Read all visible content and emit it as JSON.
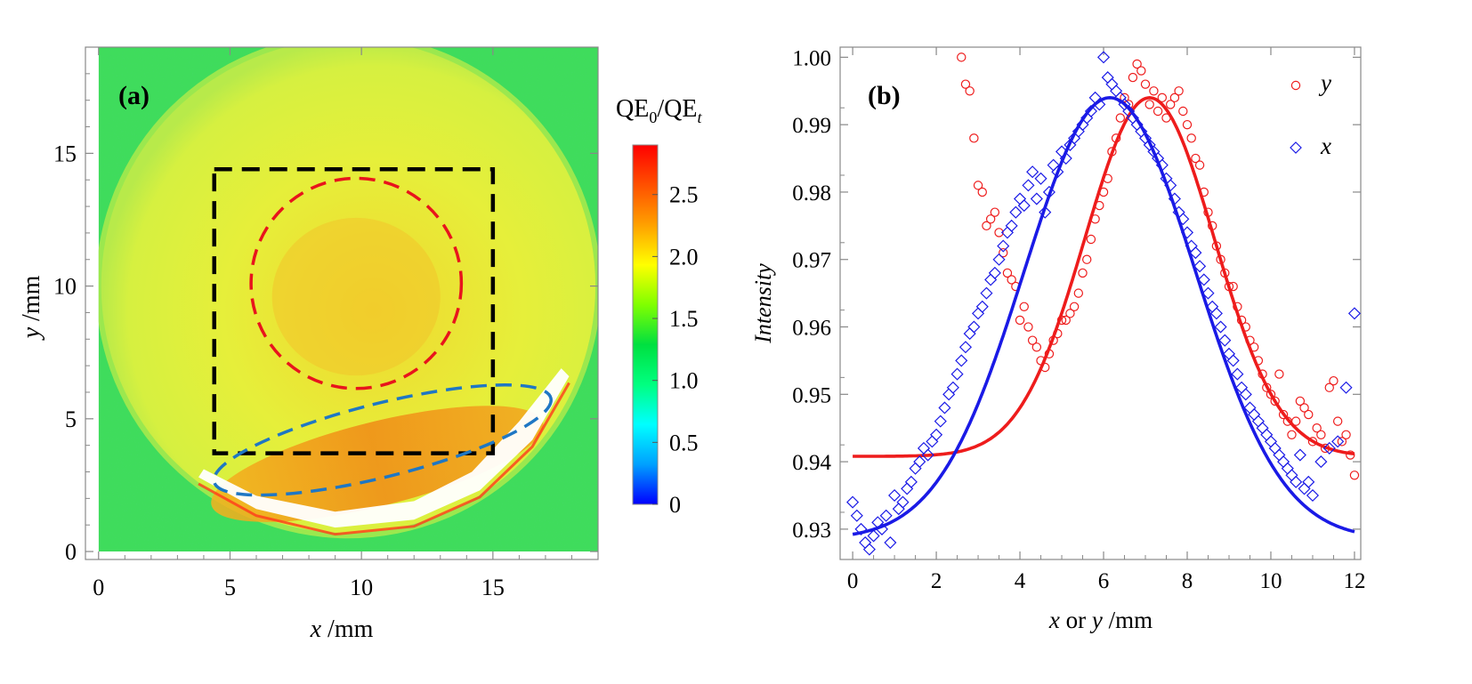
{
  "colors": {
    "frame": "#888888",
    "text": "#000000",
    "red": "#ee1c1c",
    "blue": "#1a1ae6",
    "dashed_black": "#000000",
    "dashed_red": "#e8141c",
    "dashed_blue": "#1f77c4",
    "map_background": "#3fdc5c",
    "disk_yellow": "#e8ef3a",
    "disk_orange": "#f2a51e",
    "white_streak": "#ffffff"
  },
  "chart_data": [
    {
      "type": "heatmap",
      "panel_label": "(a)",
      "xlabel": {
        "var": "x",
        "unit": " /mm"
      },
      "ylabel": {
        "var": "y",
        "unit": " /mm"
      },
      "xlim": [
        -0.5,
        19
      ],
      "ylim": [
        -0.3,
        19
      ],
      "xticks": [
        0,
        5,
        10,
        15
      ],
      "yticks": [
        0,
        5,
        10,
        15
      ],
      "colorbar": {
        "title_main": "QE",
        "title_sub1": "0",
        "title_sep": "/QE",
        "title_sub2": "t",
        "range": [
          0,
          2.9
        ],
        "ticks": [
          0,
          0.5,
          1.0,
          1.5,
          2.0,
          2.5
        ],
        "tick_labels": [
          "0",
          "0.5",
          "1.0",
          "1.5",
          "2.0",
          "2.5"
        ],
        "stops": [
          "#0000ff",
          "#00a0ff",
          "#00ffff",
          "#00ff80",
          "#00e040",
          "#80ff00",
          "#ffff00",
          "#ffa000",
          "#ff5000",
          "#ff0000"
        ]
      },
      "disk": {
        "center": [
          9.5,
          10
        ],
        "radius": 9.4
      },
      "annotations": {
        "black_dashed_rectangle": {
          "x": [
            4.4,
            15.0
          ],
          "y": [
            3.7,
            14.4
          ]
        },
        "red_dashed_circle": {
          "center": [
            9.8,
            10.1
          ],
          "radius": 4.0
        },
        "blue_dashed_ellipse": {
          "center": [
            10.8,
            4.2
          ],
          "semi_axes": [
            6.6,
            1.4
          ],
          "angle_deg": 14
        }
      }
    },
    {
      "type": "scatter",
      "panel_label": "(b)",
      "xlabel": {
        "var1": "x",
        "mid": " or ",
        "var2": "y",
        "unit": " /mm"
      },
      "ylabel": "Intensity",
      "xlim": [
        -0.3,
        12.15
      ],
      "ylim": [
        0.9255,
        1.0015
      ],
      "xticks": [
        0,
        2,
        4,
        6,
        8,
        10,
        12
      ],
      "yticks": [
        0.93,
        0.94,
        0.95,
        0.96,
        0.97,
        0.98,
        0.99,
        1.0
      ],
      "ytick_labels": [
        "0.93",
        "0.94",
        "0.95",
        "0.96",
        "0.97",
        "0.98",
        "0.99",
        "1.00"
      ],
      "series": [
        {
          "name": "y",
          "marker": "circle",
          "color": "#ee1c1c",
          "fit": {
            "baseline": 0.9408,
            "amplitude": 0.0532,
            "center": 7.1,
            "sigma": 1.55
          },
          "points": [
            [
              2.6,
              1.0
            ],
            [
              2.7,
              0.996
            ],
            [
              2.8,
              0.995
            ],
            [
              2.9,
              0.988
            ],
            [
              3.0,
              0.981
            ],
            [
              3.1,
              0.98
            ],
            [
              3.2,
              0.975
            ],
            [
              3.3,
              0.976
            ],
            [
              3.4,
              0.977
            ],
            [
              3.5,
              0.974
            ],
            [
              3.6,
              0.971
            ],
            [
              3.7,
              0.968
            ],
            [
              3.8,
              0.967
            ],
            [
              3.9,
              0.966
            ],
            [
              4.0,
              0.961
            ],
            [
              4.1,
              0.963
            ],
            [
              4.2,
              0.96
            ],
            [
              4.3,
              0.958
            ],
            [
              4.4,
              0.957
            ],
            [
              4.5,
              0.955
            ],
            [
              4.6,
              0.954
            ],
            [
              4.7,
              0.956
            ],
            [
              4.8,
              0.958
            ],
            [
              4.9,
              0.959
            ],
            [
              5.0,
              0.961
            ],
            [
              5.1,
              0.961
            ],
            [
              5.2,
              0.962
            ],
            [
              5.3,
              0.963
            ],
            [
              5.4,
              0.965
            ],
            [
              5.5,
              0.968
            ],
            [
              5.6,
              0.97
            ],
            [
              5.7,
              0.973
            ],
            [
              5.8,
              0.976
            ],
            [
              5.9,
              0.978
            ],
            [
              6.0,
              0.98
            ],
            [
              6.1,
              0.982
            ],
            [
              6.2,
              0.986
            ],
            [
              6.3,
              0.988
            ],
            [
              6.4,
              0.991
            ],
            [
              6.5,
              0.994
            ],
            [
              6.6,
              0.993
            ],
            [
              6.7,
              0.997
            ],
            [
              6.8,
              0.999
            ],
            [
              6.9,
              0.998
            ],
            [
              7.0,
              0.996
            ],
            [
              7.1,
              0.993
            ],
            [
              7.2,
              0.995
            ],
            [
              7.3,
              0.992
            ],
            [
              7.4,
              0.994
            ],
            [
              7.5,
              0.991
            ],
            [
              7.6,
              0.993
            ],
            [
              7.7,
              0.994
            ],
            [
              7.8,
              0.995
            ],
            [
              7.9,
              0.992
            ],
            [
              8.0,
              0.99
            ],
            [
              8.1,
              0.988
            ],
            [
              8.2,
              0.985
            ],
            [
              8.3,
              0.984
            ],
            [
              8.4,
              0.98
            ],
            [
              8.5,
              0.977
            ],
            [
              8.6,
              0.975
            ],
            [
              8.7,
              0.972
            ],
            [
              8.8,
              0.97
            ],
            [
              8.9,
              0.968
            ],
            [
              9.0,
              0.966
            ],
            [
              9.1,
              0.966
            ],
            [
              9.2,
              0.963
            ],
            [
              9.3,
              0.961
            ],
            [
              9.4,
              0.96
            ],
            [
              9.5,
              0.958
            ],
            [
              9.6,
              0.957
            ],
            [
              9.7,
              0.955
            ],
            [
              9.8,
              0.953
            ],
            [
              9.9,
              0.951
            ],
            [
              10.0,
              0.95
            ],
            [
              10.1,
              0.949
            ],
            [
              10.2,
              0.953
            ],
            [
              10.3,
              0.947
            ],
            [
              10.4,
              0.946
            ],
            [
              10.5,
              0.944
            ],
            [
              10.6,
              0.946
            ],
            [
              10.7,
              0.949
            ],
            [
              10.8,
              0.948
            ],
            [
              10.9,
              0.947
            ],
            [
              11.0,
              0.943
            ],
            [
              11.1,
              0.945
            ],
            [
              11.2,
              0.944
            ],
            [
              11.3,
              0.942
            ],
            [
              11.4,
              0.951
            ],
            [
              11.5,
              0.952
            ],
            [
              11.6,
              0.946
            ],
            [
              11.7,
              0.943
            ],
            [
              11.8,
              0.944
            ],
            [
              11.9,
              0.941
            ],
            [
              12.0,
              0.938
            ]
          ]
        },
        {
          "name": "x",
          "marker": "diamond",
          "color": "#1a1ae6",
          "fit": {
            "baseline": 0.9285,
            "amplitude": 0.0655,
            "center": 6.15,
            "sigma": 2.05
          },
          "points": [
            [
              0.0,
              0.934
            ],
            [
              0.1,
              0.932
            ],
            [
              0.2,
              0.93
            ],
            [
              0.3,
              0.928
            ],
            [
              0.4,
              0.927
            ],
            [
              0.5,
              0.929
            ],
            [
              0.6,
              0.931
            ],
            [
              0.7,
              0.93
            ],
            [
              0.8,
              0.932
            ],
            [
              0.9,
              0.928
            ],
            [
              1.0,
              0.935
            ],
            [
              1.1,
              0.933
            ],
            [
              1.2,
              0.934
            ],
            [
              1.3,
              0.936
            ],
            [
              1.4,
              0.937
            ],
            [
              1.5,
              0.939
            ],
            [
              1.6,
              0.94
            ],
            [
              1.7,
              0.942
            ],
            [
              1.8,
              0.941
            ],
            [
              1.9,
              0.943
            ],
            [
              2.0,
              0.944
            ],
            [
              2.1,
              0.946
            ],
            [
              2.2,
              0.948
            ],
            [
              2.3,
              0.95
            ],
            [
              2.4,
              0.951
            ],
            [
              2.5,
              0.953
            ],
            [
              2.6,
              0.955
            ],
            [
              2.7,
              0.957
            ],
            [
              2.8,
              0.959
            ],
            [
              2.9,
              0.96
            ],
            [
              3.0,
              0.962
            ],
            [
              3.1,
              0.963
            ],
            [
              3.2,
              0.965
            ],
            [
              3.3,
              0.967
            ],
            [
              3.4,
              0.968
            ],
            [
              3.5,
              0.97
            ],
            [
              3.6,
              0.972
            ],
            [
              3.7,
              0.974
            ],
            [
              3.8,
              0.975
            ],
            [
              3.9,
              0.977
            ],
            [
              4.0,
              0.979
            ],
            [
              4.1,
              0.978
            ],
            [
              4.2,
              0.981
            ],
            [
              4.3,
              0.983
            ],
            [
              4.4,
              0.979
            ],
            [
              4.5,
              0.982
            ],
            [
              4.6,
              0.977
            ],
            [
              4.7,
              0.98
            ],
            [
              4.8,
              0.984
            ],
            [
              4.9,
              0.983
            ],
            [
              5.0,
              0.986
            ],
            [
              5.1,
              0.985
            ],
            [
              5.2,
              0.987
            ],
            [
              5.3,
              0.988
            ],
            [
              5.4,
              0.989
            ],
            [
              5.5,
              0.99
            ],
            [
              5.6,
              0.991
            ],
            [
              5.7,
              0.992
            ],
            [
              5.8,
              0.994
            ],
            [
              5.9,
              0.993
            ],
            [
              6.0,
              1.0
            ],
            [
              6.1,
              0.997
            ],
            [
              6.2,
              0.996
            ],
            [
              6.3,
              0.995
            ],
            [
              6.4,
              0.994
            ],
            [
              6.5,
              0.993
            ],
            [
              6.6,
              0.992
            ],
            [
              6.7,
              0.991
            ],
            [
              6.8,
              0.99
            ],
            [
              6.9,
              0.989
            ],
            [
              7.0,
              0.988
            ],
            [
              7.1,
              0.987
            ],
            [
              7.2,
              0.986
            ],
            [
              7.3,
              0.985
            ],
            [
              7.4,
              0.984
            ],
            [
              7.5,
              0.982
            ],
            [
              7.6,
              0.981
            ],
            [
              7.7,
              0.979
            ],
            [
              7.8,
              0.977
            ],
            [
              7.9,
              0.976
            ],
            [
              8.0,
              0.974
            ],
            [
              8.1,
              0.972
            ],
            [
              8.2,
              0.971
            ],
            [
              8.3,
              0.969
            ],
            [
              8.4,
              0.967
            ],
            [
              8.5,
              0.965
            ],
            [
              8.6,
              0.963
            ],
            [
              8.7,
              0.962
            ],
            [
              8.8,
              0.96
            ],
            [
              8.9,
              0.958
            ],
            [
              9.0,
              0.956
            ],
            [
              9.1,
              0.955
            ],
            [
              9.2,
              0.953
            ],
            [
              9.3,
              0.951
            ],
            [
              9.4,
              0.95
            ],
            [
              9.5,
              0.948
            ],
            [
              9.6,
              0.947
            ],
            [
              9.7,
              0.946
            ],
            [
              9.8,
              0.945
            ],
            [
              9.9,
              0.944
            ],
            [
              10.0,
              0.943
            ],
            [
              10.1,
              0.942
            ],
            [
              10.2,
              0.941
            ],
            [
              10.3,
              0.94
            ],
            [
              10.4,
              0.939
            ],
            [
              10.5,
              0.938
            ],
            [
              10.6,
              0.937
            ],
            [
              10.7,
              0.941
            ],
            [
              10.8,
              0.936
            ],
            [
              10.9,
              0.937
            ],
            [
              11.0,
              0.935
            ],
            [
              11.2,
              0.94
            ],
            [
              11.4,
              0.942
            ],
            [
              11.6,
              0.943
            ],
            [
              11.8,
              0.951
            ],
            [
              12.0,
              0.962
            ]
          ]
        }
      ]
    }
  ]
}
